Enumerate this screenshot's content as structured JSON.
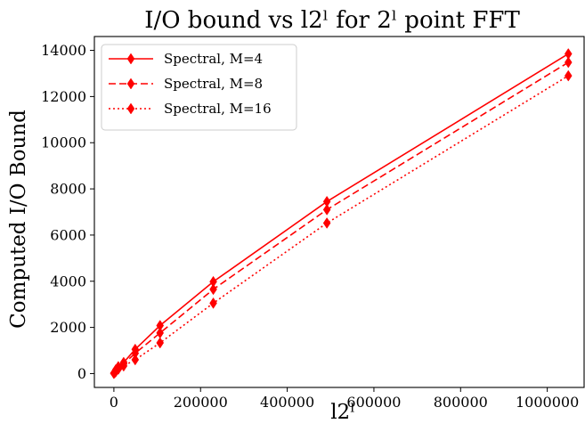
{
  "chart_data": {
    "type": "line",
    "title": "I/O bound vs l2ˡ for 2ˡ point FFT",
    "xlabel": "l2ˡ",
    "ylabel": "Computed I/O Bound",
    "xlim": [
      -45000,
      1085000
    ],
    "ylim": [
      -600,
      14600
    ],
    "grid": false,
    "legend_position": "upper-left",
    "x": [
      0,
      2048,
      4608,
      10240,
      22528,
      49152,
      106496,
      229376,
      491520,
      1048576
    ],
    "x_ticks": [
      0,
      200000,
      400000,
      600000,
      800000,
      1000000
    ],
    "x_tick_labels": [
      "0",
      "200000",
      "400000",
      "600000",
      "800000",
      "1000000"
    ],
    "y_ticks": [
      0,
      2000,
      4000,
      6000,
      8000,
      10000,
      12000,
      14000
    ],
    "y_tick_labels": [
      "0",
      "2000",
      "4000",
      "6000",
      "8000",
      "10000",
      "12000",
      "14000"
    ],
    "series": [
      {
        "name": "Spectral, M=4",
        "linestyle": "solid",
        "marker": "diamond",
        "color": "#ff0000",
        "values": [
          20,
          80,
          170,
          300,
          480,
          1050,
          2080,
          3980,
          7450,
          13850
        ]
      },
      {
        "name": "Spectral, M=8",
        "linestyle": "dashed",
        "marker": "diamond",
        "color": "#ff0000",
        "values": [
          15,
          60,
          130,
          250,
          420,
          880,
          1760,
          3650,
          7100,
          13480
        ]
      },
      {
        "name": "Spectral, M=16",
        "linestyle": "dotted",
        "marker": "diamond",
        "color": "#ff0000",
        "values": [
          8,
          40,
          90,
          190,
          330,
          600,
          1330,
          3050,
          6520,
          12900
        ]
      }
    ]
  }
}
